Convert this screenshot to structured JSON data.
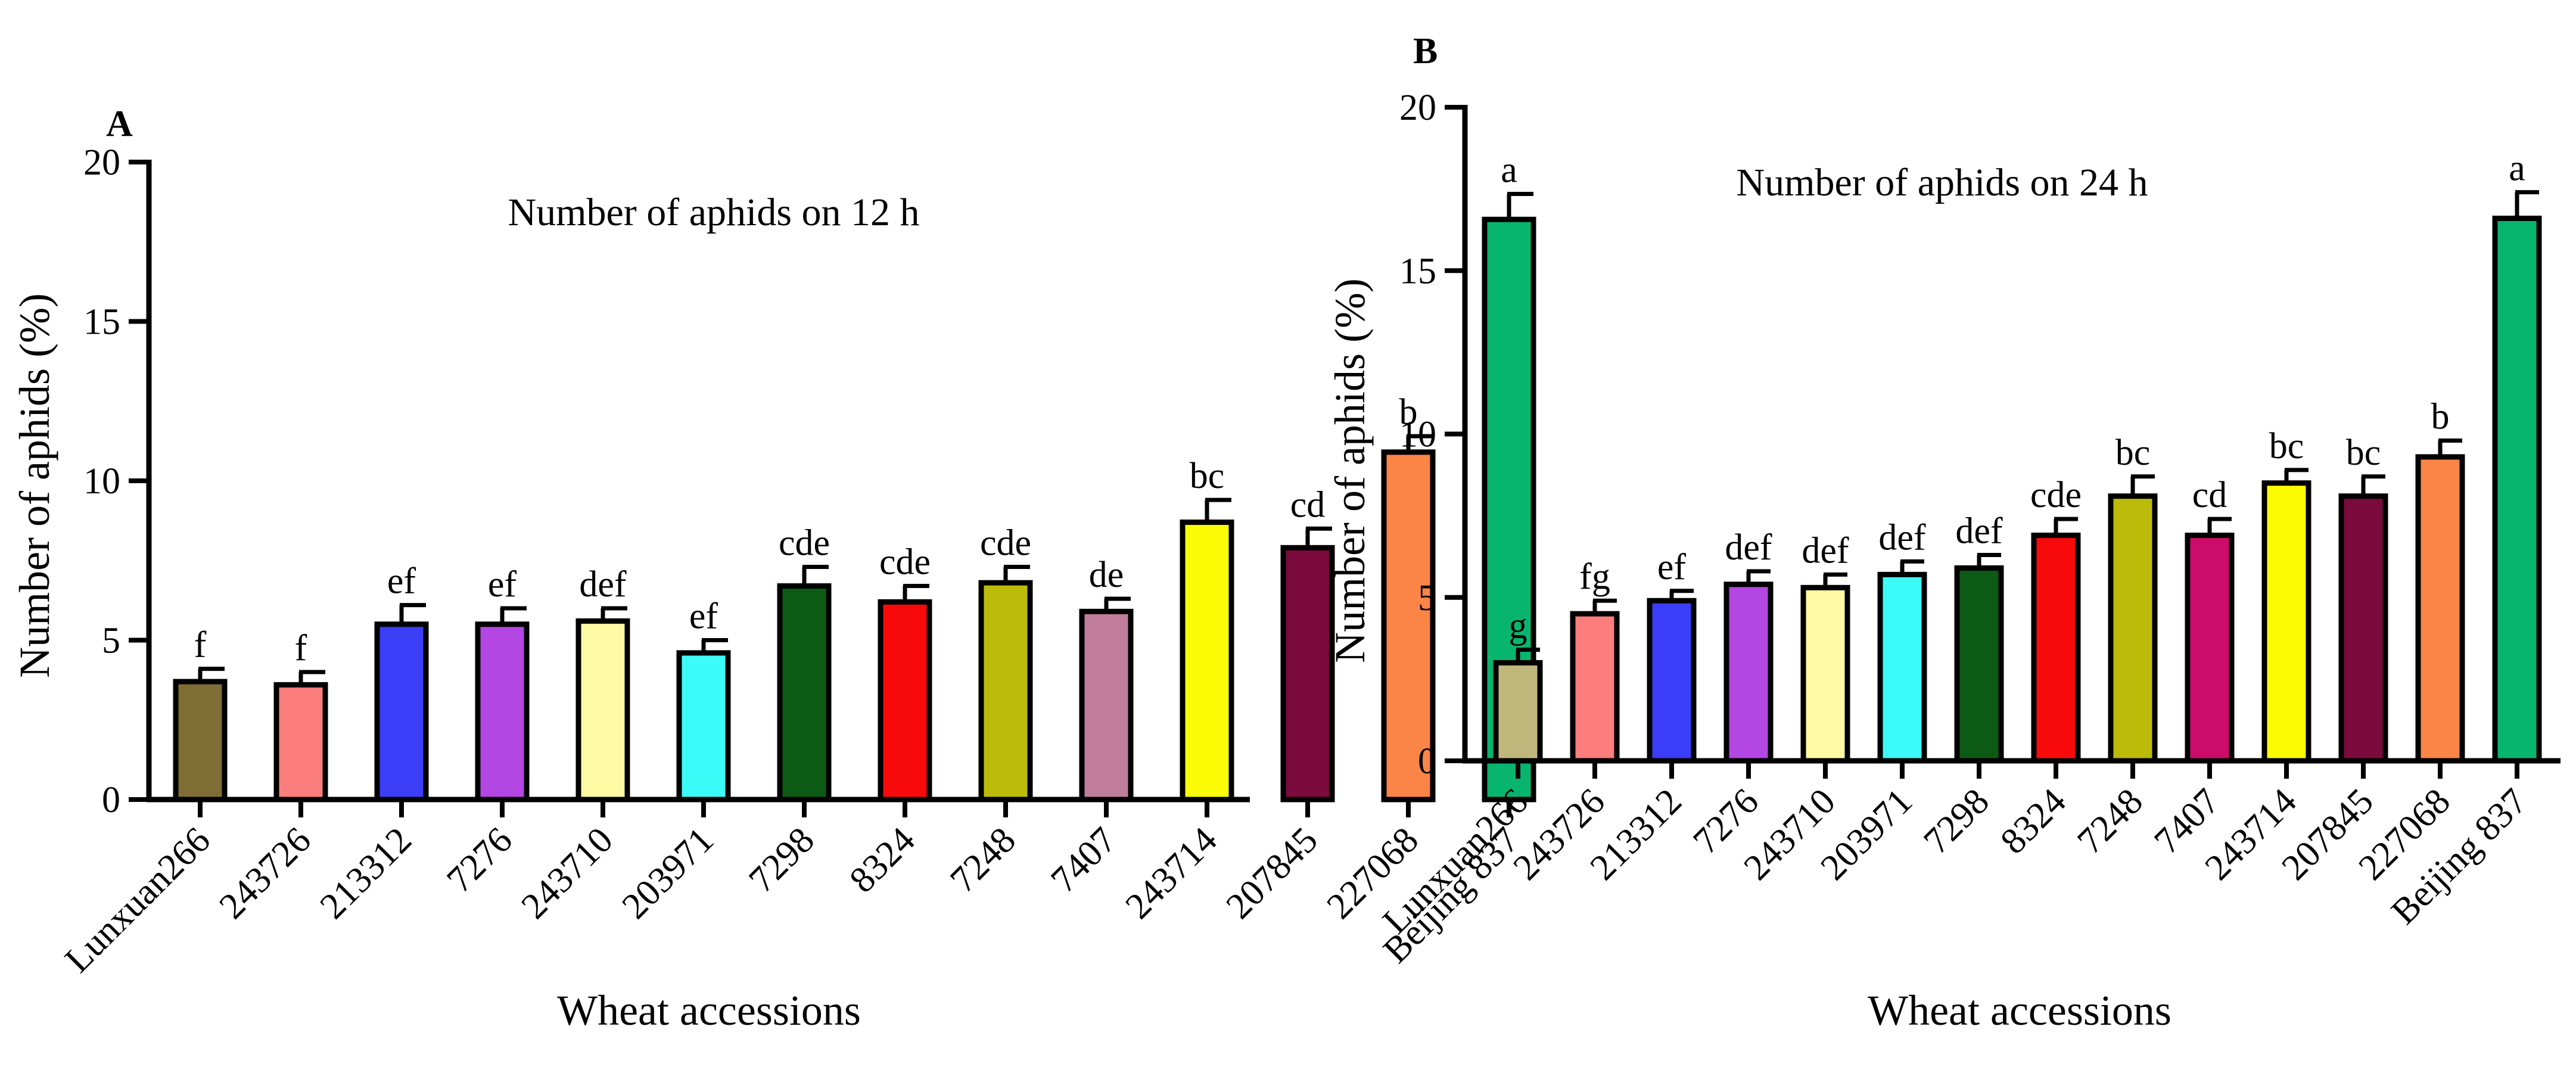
{
  "chart_data": [
    {
      "panel": "A",
      "type": "bar",
      "title": "Number of aphids on 12 h",
      "xlabel": "Wheat accessions",
      "ylabel": "Number of aphids (%)",
      "ylim": [
        0,
        20
      ],
      "yticks": [
        0,
        5,
        10,
        15,
        20
      ],
      "categories": [
        "Lunxuan266",
        "243726",
        "213312",
        "7276",
        "243710",
        "203971",
        "7298",
        "8324",
        "7248",
        "7407",
        "243714",
        "207845",
        "227068",
        "Beijing 837"
      ],
      "values": [
        3.7,
        3.6,
        5.5,
        5.5,
        5.6,
        4.6,
        6.7,
        6.2,
        6.8,
        5.9,
        8.7,
        7.9,
        10.9,
        18.2
      ],
      "errors": [
        0.4,
        0.4,
        0.6,
        0.5,
        0.4,
        0.4,
        0.6,
        0.5,
        0.5,
        0.4,
        0.7,
        0.6,
        0.5,
        0.8
      ],
      "letters": [
        "f",
        "f",
        "ef",
        "ef",
        "def",
        "ef",
        "cde",
        "cde",
        "cde",
        "de",
        "bc",
        "cd",
        "b",
        "a"
      ],
      "colors": [
        "#7e6d34",
        "#fb7d7c",
        "#3b3df7",
        "#b446e4",
        "#fdfaa3",
        "#3cfaf7",
        "#0c5a14",
        "#f90a0a",
        "#bcbb0a",
        "#c07d9c",
        "#fbfb05",
        "#7b0a3d",
        "#fb8447",
        "#08b56e"
      ]
    },
    {
      "panel": "B",
      "type": "bar",
      "title": "Number of aphids on 24 h",
      "xlabel": "Wheat accessions",
      "ylabel": "Number of aphids (%)",
      "ylim": [
        0,
        20
      ],
      "yticks": [
        0,
        5,
        10,
        15,
        20
      ],
      "categories": [
        "Lunxuan266",
        "243726",
        "213312",
        "7276",
        "243710",
        "203971",
        "7298",
        "8324",
        "7248",
        "7407",
        "243714",
        "207845",
        "227068",
        "Beijing 837"
      ],
      "values": [
        3.0,
        4.5,
        4.9,
        5.4,
        5.3,
        5.7,
        5.9,
        6.9,
        8.1,
        6.9,
        8.5,
        8.1,
        9.3,
        16.6
      ],
      "errors": [
        0.4,
        0.4,
        0.3,
        0.4,
        0.4,
        0.4,
        0.4,
        0.5,
        0.6,
        0.5,
        0.4,
        0.6,
        0.5,
        0.8
      ],
      "letters": [
        "g",
        "fg",
        "ef",
        "def",
        "def",
        "def",
        "def",
        "cde",
        "bc",
        "cd",
        "bc",
        "bc",
        "b",
        "a"
      ],
      "colors": [
        "#c0b77d",
        "#fb7d7c",
        "#3b3df7",
        "#b446e4",
        "#fdfaa3",
        "#3cfaf7",
        "#0c5a14",
        "#f90a0a",
        "#bcbb0a",
        "#cd0b6a",
        "#fbfb05",
        "#7b0a3d",
        "#fb8447",
        "#08b56e"
      ]
    }
  ]
}
